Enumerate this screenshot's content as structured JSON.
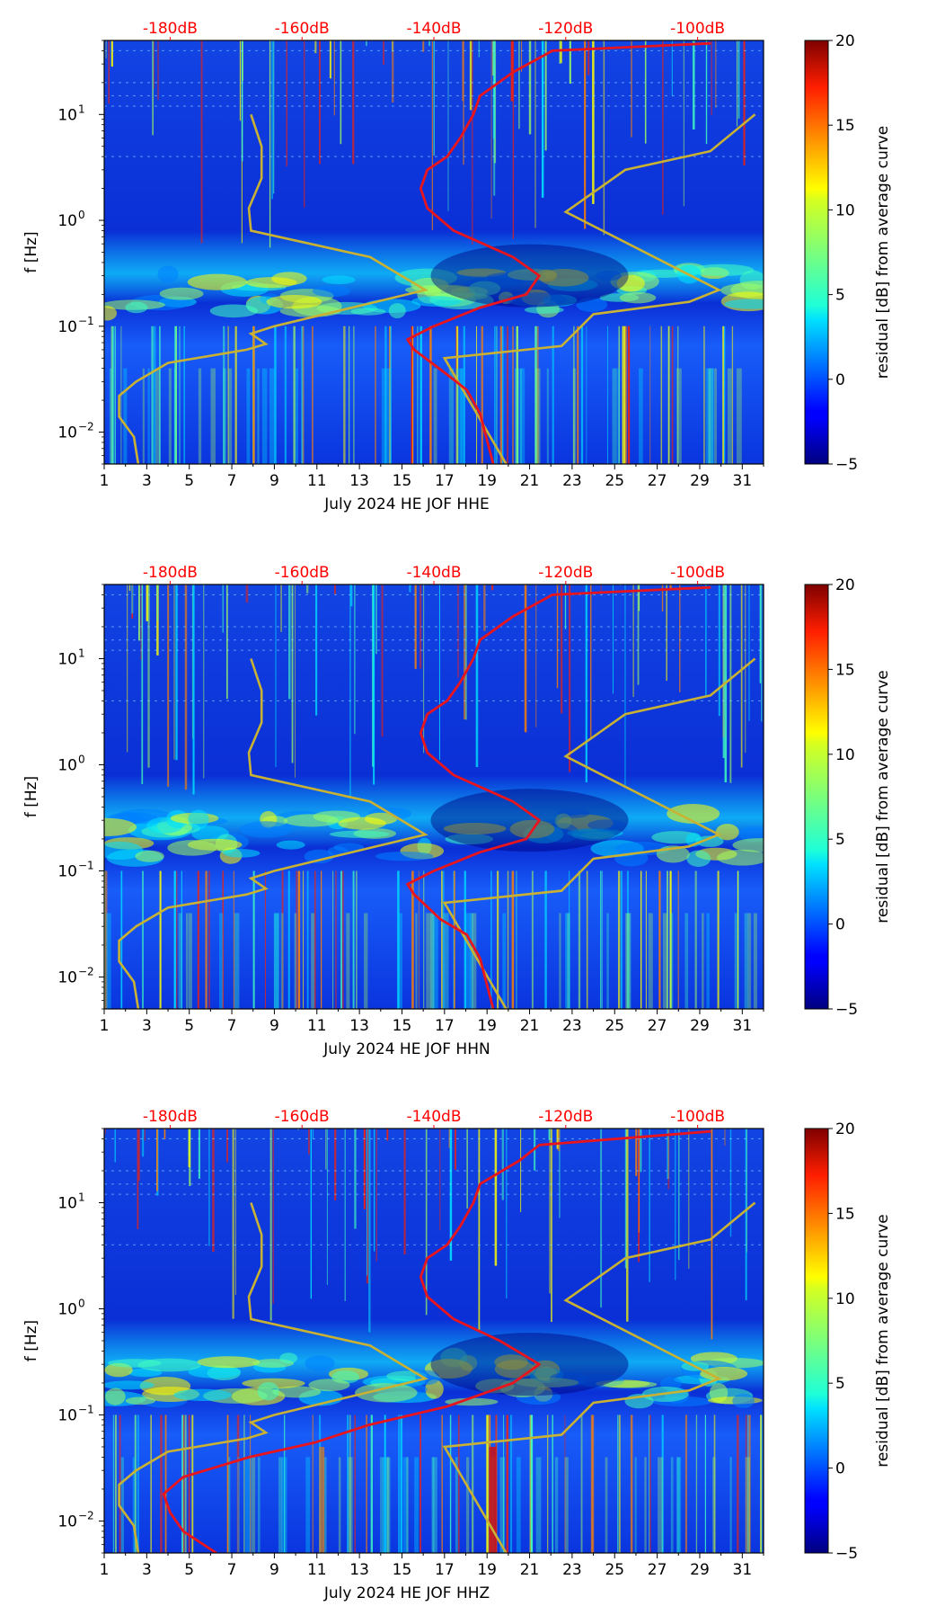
{
  "figure": {
    "colorbar": {
      "label": "residual [dB] from average curve",
      "ticks": [
        "20",
        "15",
        "10",
        "5",
        "0",
        "−5"
      ],
      "range": [
        -5,
        20
      ],
      "colormap": "jet"
    },
    "top_axis": {
      "labels": [
        "-180dB",
        "-160dB",
        "-140dB",
        "-120dB",
        "-100dB"
      ],
      "color": "#ff0000"
    },
    "y_axis": {
      "label": "f [Hz]",
      "tick_labels": [
        "10",
        "10",
        "10"
      ],
      "tick_exponents": [
        "1",
        "0",
        "−1",
        "−2"
      ]
    },
    "x_axis": {
      "tick_labels": [
        "1",
        "3",
        "5",
        "7",
        "9",
        "11",
        "13",
        "15",
        "17",
        "19",
        "21",
        "23",
        "25",
        "27",
        "29",
        "31"
      ]
    },
    "colors": {
      "spectrogram_background": "#0a2fd6",
      "mean_psd_curve": "#e8141e",
      "reference_curve": "#c9b233"
    }
  },
  "chart_data": [
    {
      "type": "heatmap",
      "xlabel": "July 2024 HE JOF  HHE",
      "ylabel": "f [Hz]",
      "x_range": [
        1,
        32
      ],
      "y_range": [
        0.005,
        50
      ],
      "y_scale": "log",
      "z_range": [
        -5,
        20
      ],
      "top_axis_db": [
        -180,
        -160,
        -140,
        -120,
        -100
      ],
      "mean_curve_db_vs_hz": [
        [
          -131,
          0.005
        ],
        [
          -133,
          0.015
        ],
        [
          -135,
          0.025
        ],
        [
          -138,
          0.035
        ],
        [
          -143,
          0.06
        ],
        [
          -144,
          0.075
        ],
        [
          -140,
          0.1
        ],
        [
          -133,
          0.15
        ],
        [
          -126,
          0.2
        ],
        [
          -124,
          0.3
        ],
        [
          -128,
          0.45
        ],
        [
          -137,
          0.8
        ],
        [
          -141,
          1.3
        ],
        [
          -142,
          2.0
        ],
        [
          -141,
          3.0
        ],
        [
          -138,
          4.0
        ],
        [
          -136,
          6.0
        ],
        [
          -134,
          10
        ],
        [
          -133,
          15
        ],
        [
          -128,
          25
        ],
        [
          -122,
          40
        ],
        [
          -98,
          47
        ]
      ],
      "reference_curve_day_vs_hz": [
        [
          2.6,
          0.005
        ],
        [
          2.4,
          0.009
        ],
        [
          1.7,
          0.014
        ],
        [
          1.7,
          0.022
        ],
        [
          2.5,
          0.03
        ],
        [
          4.0,
          0.045
        ],
        [
          7.7,
          0.06
        ],
        [
          8.6,
          0.068
        ],
        [
          7.9,
          0.085
        ],
        [
          9.0,
          0.1
        ],
        [
          16.1,
          0.22
        ],
        [
          13.5,
          0.45
        ],
        [
          7.9,
          0.8
        ],
        [
          7.8,
          1.3
        ],
        [
          8.4,
          2.5
        ],
        [
          8.4,
          5.0
        ],
        [
          7.9,
          10.0
        ]
      ],
      "reference_curve_2_day_vs_hz": [
        [
          19.9,
          0.005
        ],
        [
          17.0,
          0.05
        ],
        [
          22.5,
          0.065
        ],
        [
          24.0,
          0.13
        ],
        [
          28.5,
          0.17
        ],
        [
          29.9,
          0.22
        ],
        [
          22.7,
          1.2
        ],
        [
          25.5,
          3.0
        ],
        [
          29.5,
          4.5
        ],
        [
          31.6,
          10.0
        ]
      ]
    },
    {
      "type": "heatmap",
      "xlabel": "July 2024 HE JOF  HHN",
      "ylabel": "f [Hz]",
      "x_range": [
        1,
        32
      ],
      "y_range": [
        0.005,
        50
      ],
      "y_scale": "log",
      "z_range": [
        -5,
        20
      ],
      "top_axis_db": [
        -180,
        -160,
        -140,
        -120,
        -100
      ],
      "mean_curve_db_vs_hz": [
        [
          -131,
          0.005
        ],
        [
          -133,
          0.015
        ],
        [
          -135,
          0.025
        ],
        [
          -139,
          0.035
        ],
        [
          -143,
          0.06
        ],
        [
          -144,
          0.075
        ],
        [
          -140,
          0.1
        ],
        [
          -133,
          0.15
        ],
        [
          -126,
          0.2
        ],
        [
          -124,
          0.3
        ],
        [
          -128,
          0.45
        ],
        [
          -137,
          0.8
        ],
        [
          -141,
          1.3
        ],
        [
          -142,
          2.0
        ],
        [
          -141,
          3.0
        ],
        [
          -138,
          4.0
        ],
        [
          -136,
          6.0
        ],
        [
          -134,
          10
        ],
        [
          -133,
          15
        ],
        [
          -128,
          25
        ],
        [
          -122,
          40
        ],
        [
          -98,
          47
        ]
      ],
      "reference_curve_day_vs_hz": [
        [
          2.6,
          0.005
        ],
        [
          2.4,
          0.009
        ],
        [
          1.7,
          0.014
        ],
        [
          1.7,
          0.022
        ],
        [
          2.5,
          0.03
        ],
        [
          4.0,
          0.045
        ],
        [
          7.7,
          0.06
        ],
        [
          8.6,
          0.068
        ],
        [
          7.9,
          0.085
        ],
        [
          9.0,
          0.1
        ],
        [
          16.1,
          0.22
        ],
        [
          13.5,
          0.45
        ],
        [
          7.9,
          0.8
        ],
        [
          7.8,
          1.3
        ],
        [
          8.4,
          2.5
        ],
        [
          8.4,
          5.0
        ],
        [
          7.9,
          10.0
        ]
      ],
      "reference_curve_2_day_vs_hz": [
        [
          19.9,
          0.005
        ],
        [
          17.0,
          0.05
        ],
        [
          22.5,
          0.065
        ],
        [
          24.0,
          0.13
        ],
        [
          28.5,
          0.17
        ],
        [
          29.9,
          0.22
        ],
        [
          22.7,
          1.2
        ],
        [
          25.5,
          3.0
        ],
        [
          29.5,
          4.5
        ],
        [
          31.6,
          10.0
        ]
      ]
    },
    {
      "type": "heatmap",
      "xlabel": "July 2024 HE JOF  HHZ",
      "ylabel": "f [Hz]",
      "x_range": [
        1,
        32
      ],
      "y_range": [
        0.005,
        50
      ],
      "y_scale": "log",
      "z_range": [
        -5,
        20
      ],
      "top_axis_db": [
        -180,
        -160,
        -140,
        -120,
        -100
      ],
      "mean_curve_db_vs_hz": [
        [
          -173,
          0.005
        ],
        [
          -178,
          0.008
        ],
        [
          -180,
          0.012
        ],
        [
          -181,
          0.018
        ],
        [
          -178,
          0.026
        ],
        [
          -168,
          0.04
        ],
        [
          -158,
          0.055
        ],
        [
          -150,
          0.08
        ],
        [
          -138,
          0.12
        ],
        [
          -128,
          0.2
        ],
        [
          -124,
          0.3
        ],
        [
          -130,
          0.5
        ],
        [
          -137,
          0.8
        ],
        [
          -141,
          1.3
        ],
        [
          -142,
          2.0
        ],
        [
          -141,
          3.0
        ],
        [
          -138,
          4.0
        ],
        [
          -136,
          6.0
        ],
        [
          -134,
          10
        ],
        [
          -133,
          15
        ],
        [
          -127,
          25
        ],
        [
          -124,
          35
        ],
        [
          -98,
          47
        ]
      ],
      "reference_curve_day_vs_hz": [
        [
          2.6,
          0.005
        ],
        [
          2.4,
          0.009
        ],
        [
          1.7,
          0.014
        ],
        [
          1.7,
          0.022
        ],
        [
          2.5,
          0.03
        ],
        [
          4.0,
          0.045
        ],
        [
          7.7,
          0.06
        ],
        [
          8.6,
          0.068
        ],
        [
          7.9,
          0.085
        ],
        [
          9.0,
          0.1
        ],
        [
          16.1,
          0.22
        ],
        [
          13.5,
          0.45
        ],
        [
          7.9,
          0.8
        ],
        [
          7.8,
          1.3
        ],
        [
          8.4,
          2.5
        ],
        [
          8.4,
          5.0
        ],
        [
          7.9,
          10.0
        ]
      ],
      "reference_curve_2_day_vs_hz": [
        [
          19.9,
          0.005
        ],
        [
          17.0,
          0.05
        ],
        [
          22.5,
          0.065
        ],
        [
          24.0,
          0.13
        ],
        [
          28.5,
          0.17
        ],
        [
          29.9,
          0.22
        ],
        [
          22.7,
          1.2
        ],
        [
          25.5,
          3.0
        ],
        [
          29.5,
          4.5
        ],
        [
          31.6,
          10.0
        ]
      ]
    }
  ]
}
